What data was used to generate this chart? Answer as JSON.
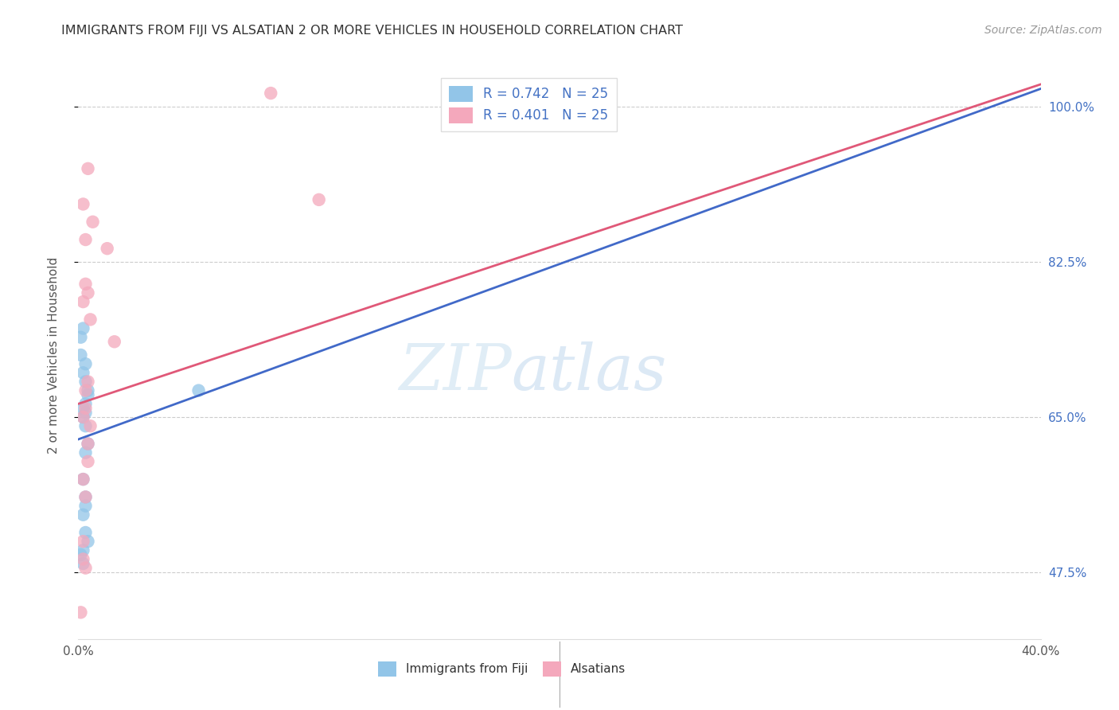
{
  "title": "IMMIGRANTS FROM FIJI VS ALSATIAN 2 OR MORE VEHICLES IN HOUSEHOLD CORRELATION CHART",
  "source": "Source: ZipAtlas.com",
  "ylabel": "2 or more Vehicles in Household",
  "watermark_zip": "ZIP",
  "watermark_atlas": "atlas",
  "legend_blue_r": "R = 0.742",
  "legend_blue_n": "N = 25",
  "legend_pink_r": "R = 0.401",
  "legend_pink_n": "N = 25",
  "xlim": [
    0.0,
    0.4
  ],
  "ylim": [
    40.0,
    104.0
  ],
  "yticks": [
    47.5,
    65.0,
    82.5,
    100.0
  ],
  "xticks": [
    0.0,
    0.05,
    0.1,
    0.15,
    0.2,
    0.25,
    0.3,
    0.35,
    0.4
  ],
  "blue_color": "#92c5e8",
  "pink_color": "#f4a8bc",
  "blue_line_color": "#4169c8",
  "pink_line_color": "#e05878",
  "fiji_x": [
    0.001,
    0.002,
    0.001,
    0.002,
    0.003,
    0.003,
    0.004,
    0.002,
    0.003,
    0.002,
    0.003,
    0.004,
    0.003,
    0.004,
    0.003,
    0.002,
    0.003,
    0.002,
    0.003,
    0.002,
    0.004,
    0.003,
    0.05,
    0.001,
    0.002
  ],
  "fiji_y": [
    74.0,
    75.0,
    72.0,
    70.0,
    71.0,
    69.0,
    68.0,
    66.0,
    65.5,
    65.0,
    64.0,
    67.5,
    66.5,
    62.0,
    61.0,
    58.0,
    56.0,
    54.0,
    52.0,
    50.0,
    51.0,
    55.0,
    68.0,
    49.5,
    48.5
  ],
  "alsatian_x": [
    0.002,
    0.004,
    0.006,
    0.012,
    0.003,
    0.003,
    0.002,
    0.015,
    0.005,
    0.005,
    0.004,
    0.003,
    0.1,
    0.003,
    0.002,
    0.004,
    0.004,
    0.08,
    0.002,
    0.004,
    0.002,
    0.003,
    0.001,
    0.003,
    0.002
  ],
  "alsatian_y": [
    89.0,
    93.0,
    87.0,
    84.0,
    85.0,
    80.0,
    78.0,
    73.5,
    76.0,
    64.0,
    69.0,
    66.0,
    89.5,
    68.0,
    65.0,
    62.0,
    60.0,
    101.5,
    49.0,
    79.0,
    58.0,
    56.0,
    43.0,
    48.0,
    51.0
  ],
  "blue_line_x0": 0.0,
  "blue_line_y0": 62.5,
  "blue_line_x1": 0.4,
  "blue_line_y1": 102.0,
  "pink_line_x0": 0.0,
  "pink_line_y0": 66.5,
  "pink_line_x1": 0.4,
  "pink_line_y1": 102.5
}
